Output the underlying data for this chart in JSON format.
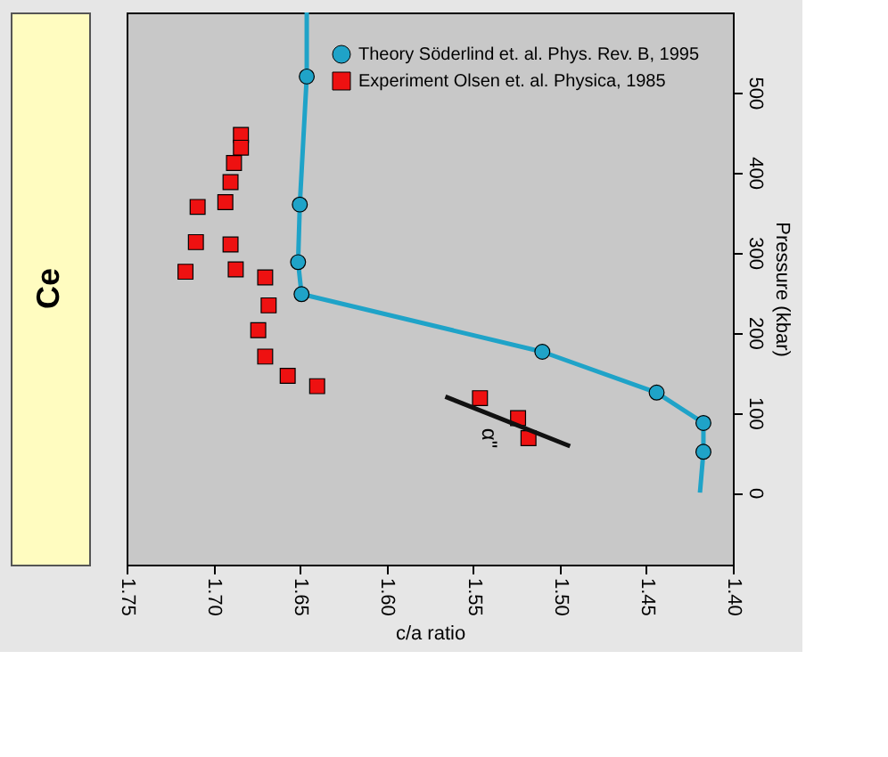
{
  "chart_data": {
    "type": "scatter",
    "title": "Ce",
    "xlabel": "c/a ratio",
    "ylabel": "Pressure (kbar)",
    "xlim": [
      1.75,
      1.4
    ],
    "ylim": [
      -90,
      600
    ],
    "xticks": [
      {
        "value": 1.75,
        "label": "1.75"
      },
      {
        "value": 1.7,
        "label": "1.70"
      },
      {
        "value": 1.65,
        "label": "1.65"
      },
      {
        "value": 1.6,
        "label": "1.60"
      },
      {
        "value": 1.55,
        "label": "1.55"
      },
      {
        "value": 1.5,
        "label": "1.50"
      },
      {
        "value": 1.45,
        "label": "1.45"
      },
      {
        "value": 1.4,
        "label": "1.40"
      }
    ],
    "yticks": [
      0,
      100,
      200,
      300,
      400,
      500
    ],
    "grid": false,
    "legend": "top right",
    "series": [
      {
        "type": "line",
        "color": "#1fa3c8",
        "marker": "none",
        "x": [
          1.419,
          1.417,
          1.417,
          1.444,
          1.51,
          1.649,
          1.651,
          1.65,
          1.646,
          1.646
        ],
        "values": [
          0,
          51,
          87,
          125,
          176,
          248,
          288,
          360,
          520,
          600
        ]
      },
      {
        "name": "Theory Söderlind et. al. Phys. Rev. B, 1995",
        "color": "#1fa3c8",
        "marker": "circle",
        "x": [
          1.417,
          1.417,
          1.444,
          1.51,
          1.649,
          1.651,
          1.65,
          1.646
        ],
        "values": [
          51,
          87,
          125,
          176,
          248,
          288,
          360,
          520
        ]
      },
      {
        "name": "Experiment Olsen et. al. Physica, 1985",
        "color": "#ee1111",
        "marker": "square",
        "x": [
          1.684,
          1.684,
          1.688,
          1.69,
          1.693,
          1.709,
          1.69,
          1.71,
          1.687,
          1.716,
          1.67,
          1.668,
          1.674,
          1.67,
          1.657,
          1.64,
          1.546,
          1.524,
          1.518
        ],
        "values": [
          447,
          431,
          412,
          388,
          363,
          357,
          310,
          313,
          279,
          276,
          269,
          234,
          203,
          170,
          146,
          133,
          118,
          93,
          68
        ]
      },
      {
        "type": "line",
        "color": "#111111",
        "marker": "none",
        "x": [
          1.566,
          1.494
        ],
        "values": [
          120,
          58
        ]
      }
    ],
    "annotations": [
      {
        "text": "α\"",
        "x": 1.518,
        "y": 68
      }
    ]
  }
}
